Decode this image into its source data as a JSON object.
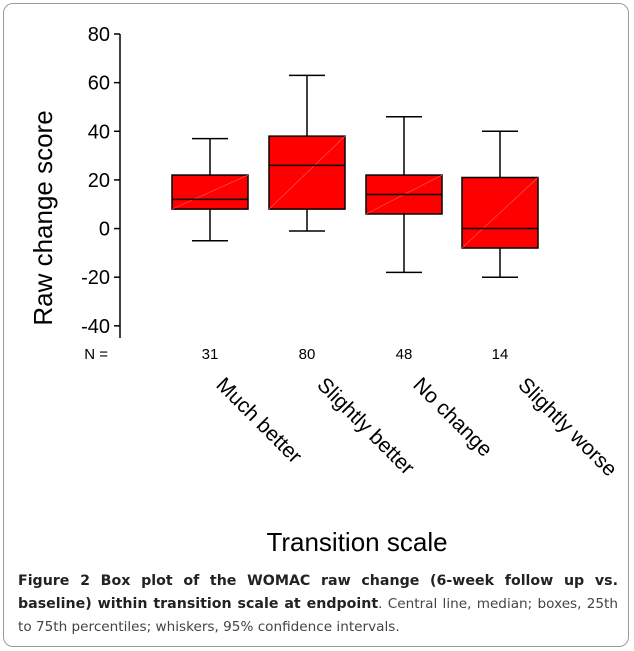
{
  "chart_data": {
    "type": "box",
    "ylabel": "Raw change score",
    "xlabel": "Transition scale",
    "ylim": [
      -45,
      80
    ],
    "yticks": [
      80,
      60,
      40,
      20,
      0,
      -20,
      -40
    ],
    "n_label": "N =",
    "categories": [
      "Much better",
      "Slightly better",
      "No change",
      "Slightly worse"
    ],
    "n": [
      "31",
      "80",
      "48",
      "14"
    ],
    "whisker_low": [
      -5,
      -1,
      -18,
      -20
    ],
    "q1": [
      8,
      8,
      6,
      -8
    ],
    "median": [
      12,
      26,
      14,
      0
    ],
    "q3": [
      22,
      38,
      22,
      21
    ],
    "whisker_high": [
      37,
      63,
      46,
      40
    ],
    "box_color": "#ff0000"
  },
  "caption": {
    "bold": "Figure 2 Box plot of the WOMAC raw change (6-week follow up vs. baseline) within transition scale at endpoint",
    "rest": ". Central line, median; boxes, 25th to 75th percentiles; whiskers, 95% confidence intervals."
  }
}
